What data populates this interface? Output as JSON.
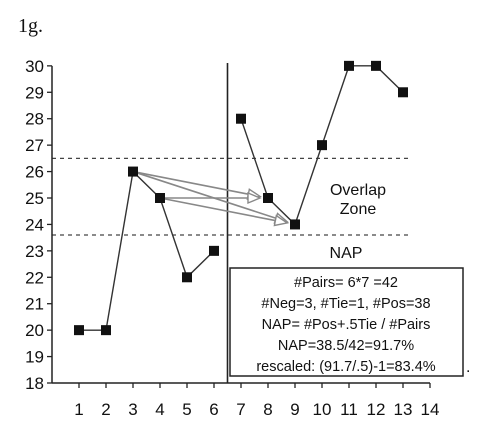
{
  "figure_label": "1g.",
  "chart_data": {
    "type": "line",
    "x_ticks": [
      1,
      2,
      3,
      4,
      5,
      6,
      7,
      8,
      9,
      10,
      11,
      12,
      13,
      14
    ],
    "y_ticks": [
      18,
      19,
      20,
      21,
      22,
      23,
      24,
      25,
      26,
      27,
      28,
      29,
      30
    ],
    "xlim": [
      0,
      14
    ],
    "ylim": [
      18,
      30.6
    ],
    "grid": false,
    "phase_line_x": 6.5,
    "series": [
      {
        "x": [
          1,
          2,
          3,
          4,
          5,
          6
        ],
        "y": [
          20,
          20,
          26,
          25,
          22,
          23
        ]
      },
      {
        "x": [
          7,
          8,
          9,
          10,
          11,
          12,
          13
        ],
        "y": [
          28,
          25,
          24,
          27,
          30,
          30,
          29
        ]
      }
    ],
    "overlap_band": [
      23.6,
      26.5
    ],
    "overlap_zone_label": [
      "Overlap",
      "Zone"
    ],
    "comparison_arrows": [
      {
        "from": [
          3,
          26
        ],
        "to": [
          8,
          25
        ]
      },
      {
        "from": [
          3,
          26
        ],
        "to": [
          9,
          24
        ]
      },
      {
        "from": [
          4,
          25
        ],
        "to": [
          8,
          25
        ]
      },
      {
        "from": [
          4,
          25
        ],
        "to": [
          9,
          24
        ]
      }
    ],
    "nap_title": "NAP",
    "nap_box_lines": [
      "#Pairs= 6*7 =42",
      "#Neg=3, #Tie=1, #Pos=38",
      "NAP= #Pos+.5Tie / #Pairs",
      "NAP=38.5/42=91.7%",
      "rescaled: (91.7/.5)-1=83.4%"
    ],
    "trailing_mark": "."
  }
}
